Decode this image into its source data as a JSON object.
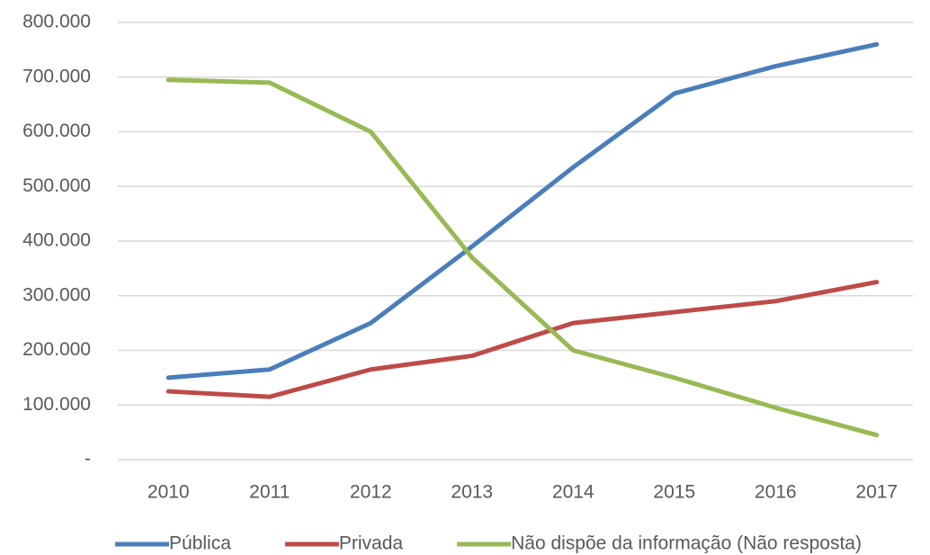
{
  "chart_data": {
    "type": "line",
    "categories": [
      "2010",
      "2011",
      "2012",
      "2013",
      "2014",
      "2015",
      "2016",
      "2017"
    ],
    "series": [
      {
        "name": "Pública",
        "color": "#4a7ebb",
        "values": [
          150000,
          165000,
          250000,
          390000,
          535000,
          670000,
          720000,
          760000
        ]
      },
      {
        "name": "Privada",
        "color": "#be4b48",
        "values": [
          125000,
          115000,
          165000,
          190000,
          250000,
          270000,
          290000,
          325000
        ]
      },
      {
        "name": "Não dispõe da informação (Não resposta)",
        "color": "#98b954",
        "values": [
          695000,
          690000,
          600000,
          370000,
          200000,
          150000,
          95000,
          45000
        ]
      }
    ],
    "ylim": [
      0,
      800000
    ],
    "yticks": [
      {
        "value": 0,
        "label": "-"
      },
      {
        "value": 100000,
        "label": "100.000"
      },
      {
        "value": 200000,
        "label": "200.000"
      },
      {
        "value": 300000,
        "label": "300.000"
      },
      {
        "value": 400000,
        "label": "400.000"
      },
      {
        "value": 500000,
        "label": "500.000"
      },
      {
        "value": 600000,
        "label": "600.000"
      },
      {
        "value": 700000,
        "label": "700.000"
      },
      {
        "value": 800000,
        "label": "800.000"
      }
    ],
    "grid": true,
    "legend": "bottom"
  }
}
